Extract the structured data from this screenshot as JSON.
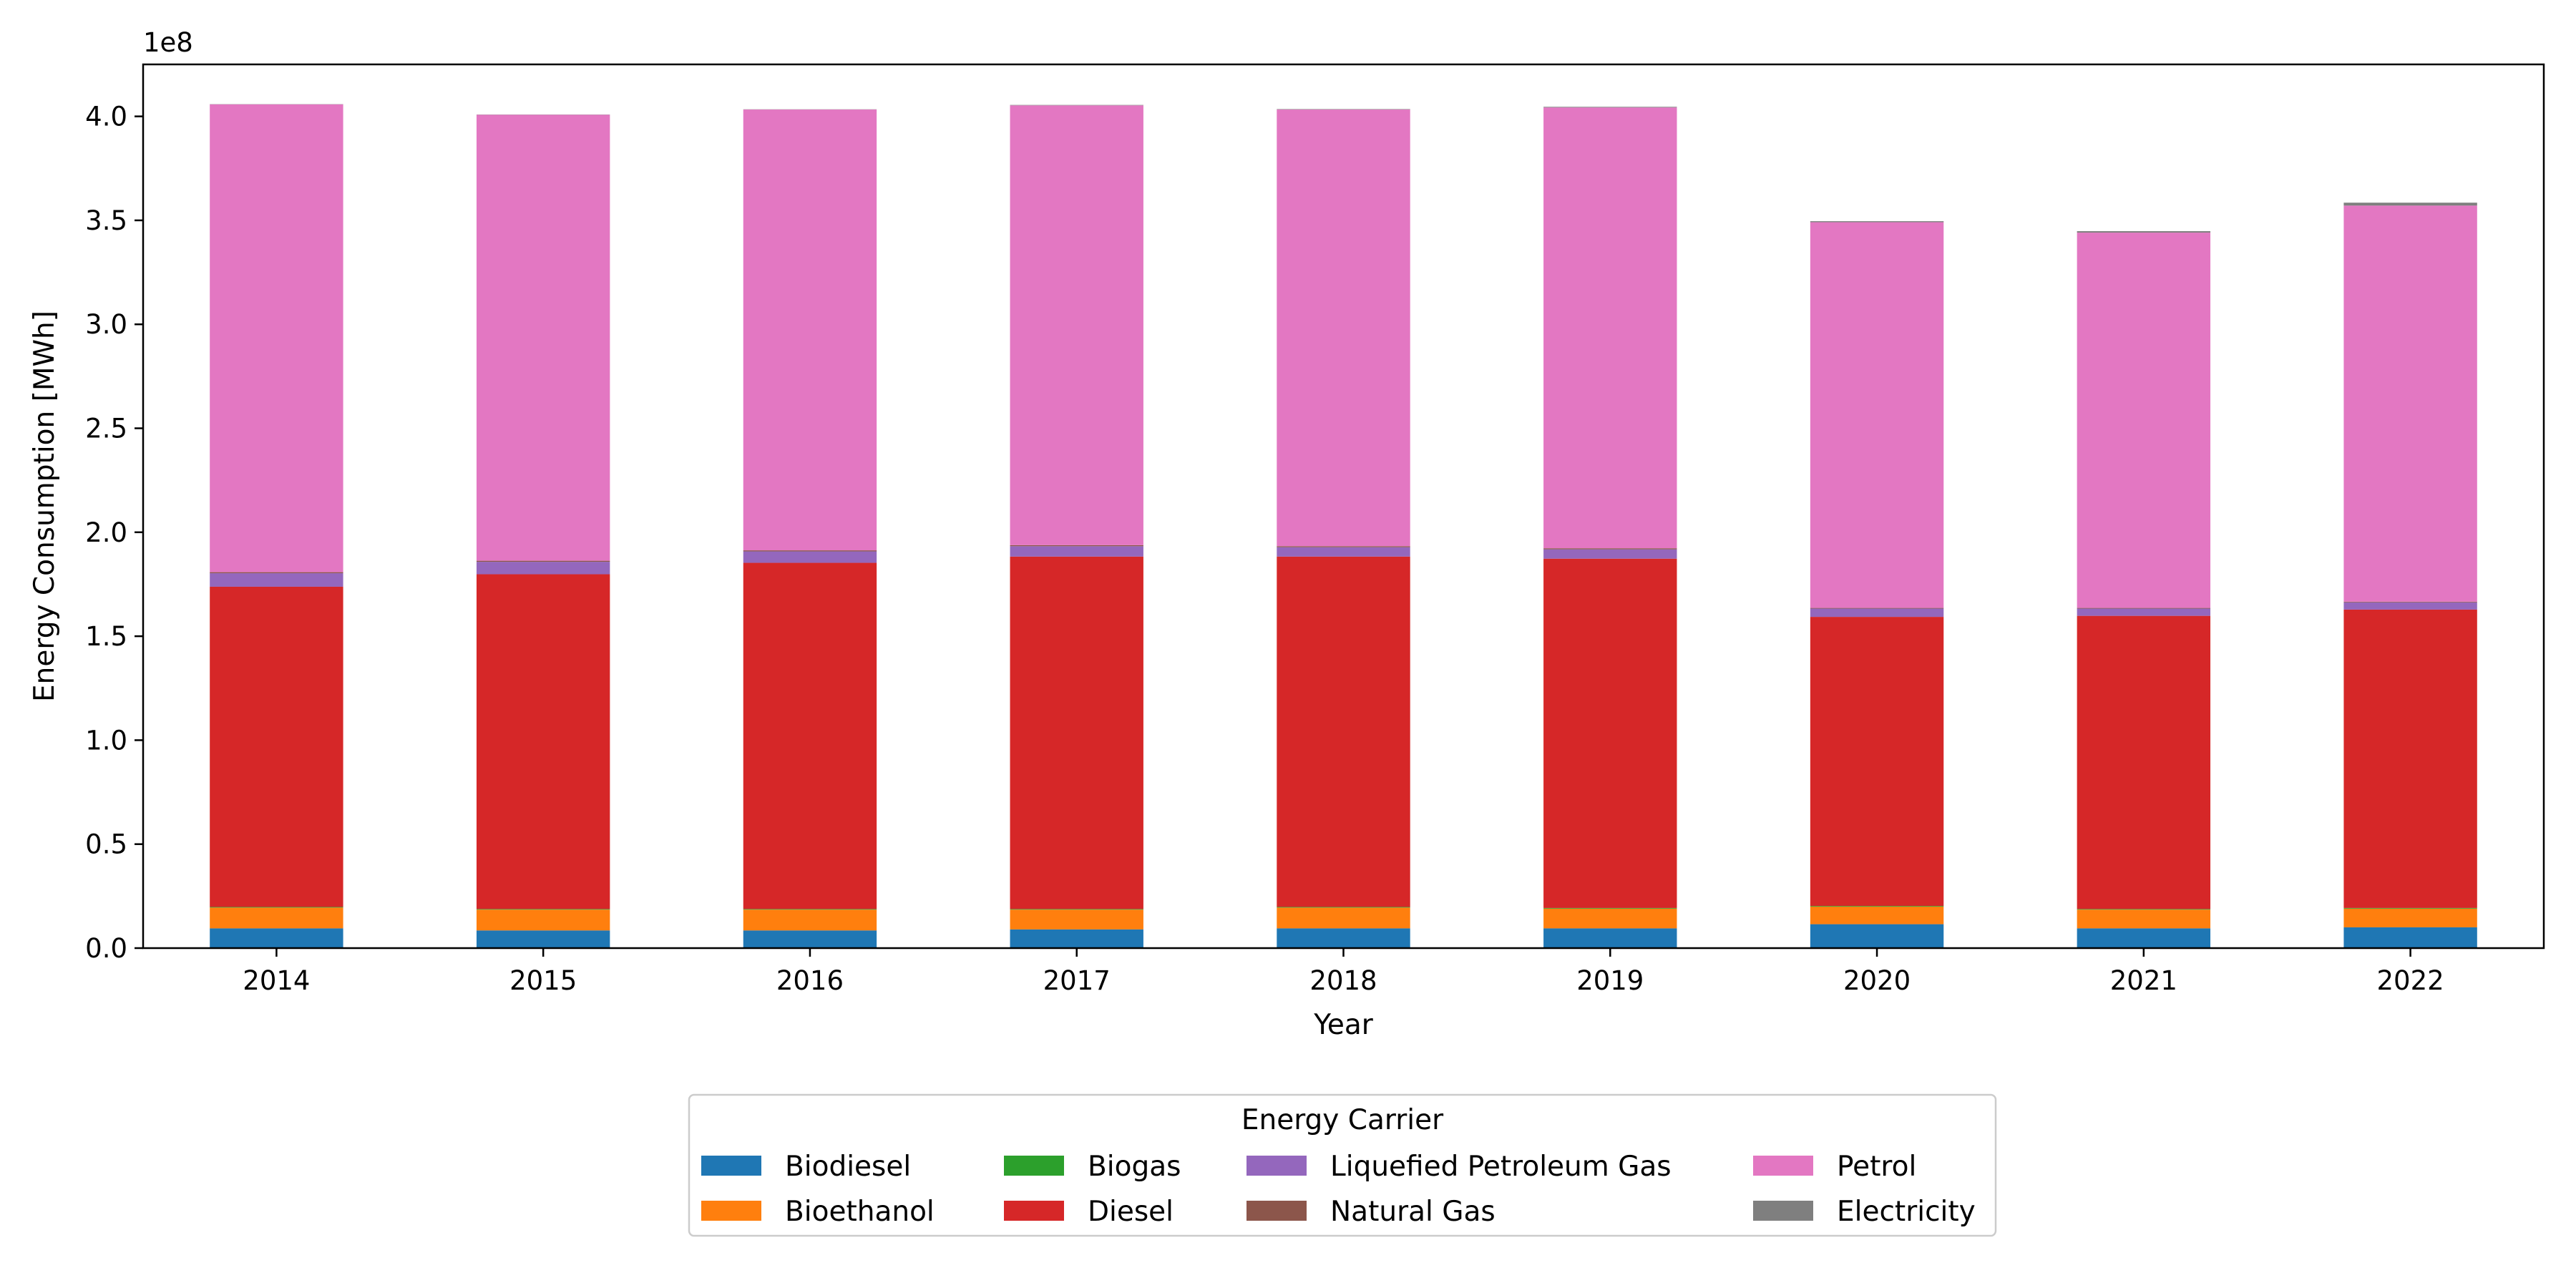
{
  "chart_data": {
    "type": "bar",
    "stacked": true,
    "categories": [
      "2014",
      "2015",
      "2016",
      "2017",
      "2018",
      "2019",
      "2020",
      "2021",
      "2022"
    ],
    "series": [
      {
        "name": "Biodiesel",
        "color": "#1f77b4",
        "values": [
          9500000,
          8500000,
          8500000,
          9000000,
          9500000,
          9500000,
          11500000,
          9500000,
          10000000
        ]
      },
      {
        "name": "Bioethanol",
        "color": "#ff7f0e",
        "values": [
          10000000,
          10000000,
          10000000,
          9500000,
          10000000,
          9500000,
          8500000,
          9000000,
          9000000
        ]
      },
      {
        "name": "Biogas",
        "color": "#2ca02c",
        "values": [
          300000,
          300000,
          300000,
          300000,
          300000,
          300000,
          300000,
          300000,
          300000
        ]
      },
      {
        "name": "Diesel",
        "color": "#d62728",
        "values": [
          154000000,
          161000000,
          166500000,
          169500000,
          168500000,
          168000000,
          139000000,
          141000000,
          143500000
        ]
      },
      {
        "name": "Liquefied Petroleum Gas",
        "color": "#9467bd",
        "values": [
          6500000,
          6000000,
          5500000,
          5000000,
          4500000,
          4500000,
          4000000,
          3500000,
          3500000
        ]
      },
      {
        "name": "Natural Gas",
        "color": "#8c564b",
        "values": [
          500000,
          500000,
          500000,
          500000,
          500000,
          500000,
          300000,
          300000,
          300000
        ]
      },
      {
        "name": "Petrol",
        "color": "#e377c2",
        "values": [
          225000000,
          214500000,
          212000000,
          211500000,
          210000000,
          212000000,
          185500000,
          180500000,
          190500000
        ]
      },
      {
        "name": "Electricity",
        "color": "#7f7f7f",
        "values": [
          100000,
          100000,
          100000,
          200000,
          200000,
          300000,
          500000,
          700000,
          1400000
        ]
      }
    ],
    "xlabel": "Year",
    "ylabel": "Energy Consumption [MWh]",
    "y_offset_label": "1e8",
    "y_scale_divisor": 100000000,
    "ylim": [
      0,
      425000000
    ],
    "yticks": [
      0,
      50000000,
      100000000,
      150000000,
      200000000,
      250000000,
      300000000,
      350000000,
      400000000
    ],
    "ytick_labels": [
      "0.0",
      "0.5",
      "1.0",
      "1.5",
      "2.0",
      "2.5",
      "3.0",
      "3.5",
      "4.0"
    ],
    "grid": false,
    "legend": {
      "title": "Energy Carrier",
      "placement": "below-center",
      "columns": 4
    }
  }
}
